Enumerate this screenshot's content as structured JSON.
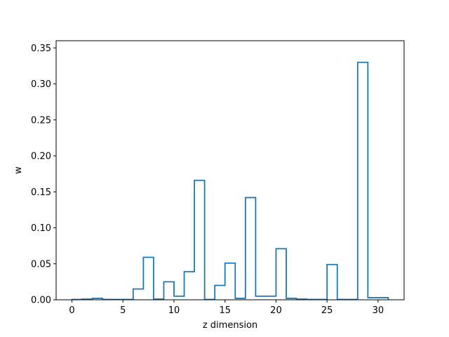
{
  "chart_data": {
    "type": "histogram-step",
    "title": "",
    "xlabel": "z dimension",
    "ylabel": "w",
    "xlim": [
      -1.55,
      32.55
    ],
    "ylim": [
      0,
      0.36
    ],
    "xticks": [
      0,
      5,
      10,
      15,
      20,
      25,
      30
    ],
    "yticks": [
      0.0,
      0.05,
      0.1,
      0.15,
      0.2,
      0.25,
      0.3,
      0.35
    ],
    "ytick_decimals": 2,
    "bin_start": 0,
    "bin_width": 1,
    "values": [
      0.0005,
      0.001,
      0.002,
      0.0005,
      0.0005,
      0.0005,
      0.015,
      0.059,
      0.001,
      0.025,
      0.005,
      0.039,
      0.166,
      0.0005,
      0.02,
      0.051,
      0.002,
      0.142,
      0.005,
      0.005,
      0.071,
      0.002,
      0.001,
      0.0005,
      0.0005,
      0.049,
      0.0005,
      0.0005,
      0.33,
      0.003,
      0.003
    ],
    "line_color": "#1f77b4",
    "grid": false,
    "legend": "none"
  }
}
